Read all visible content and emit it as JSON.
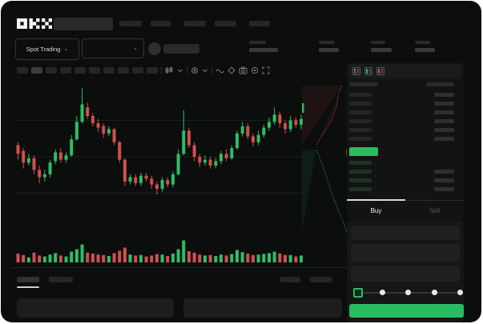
{
  "brand": {
    "name": "OKX"
  },
  "header": {
    "market_selector_label": "Spot Trading"
  },
  "toolbar": {
    "interval_count": 10,
    "icons": [
      "indicator-icon",
      "chevron-down-icon",
      "compare-icon",
      "chevron-down-icon",
      "line-tool-icon",
      "eraser-icon",
      "camera-icon",
      "settings-icon",
      "fullscreen-icon"
    ]
  },
  "colors": {
    "up_green": "#2ebd68",
    "down_red": "#d0504c",
    "accent_green": "#2abb61",
    "panel_bg": "#121313",
    "window_bg": "#0c0d0d"
  },
  "chart_data": {
    "type": "candlestick_with_volume",
    "title": "",
    "price_scale": [
      0,
      100
    ],
    "gridlines": [
      25,
      50,
      75
    ],
    "candles": [
      [
        58,
        60,
        48,
        52
      ],
      [
        54,
        56,
        42,
        46
      ],
      [
        46,
        52,
        44,
        49
      ],
      [
        49,
        51,
        38,
        41
      ],
      [
        41,
        44,
        32,
        36
      ],
      [
        36,
        41,
        33,
        38
      ],
      [
        38,
        48,
        36,
        46
      ],
      [
        47,
        55,
        45,
        53
      ],
      [
        53,
        56,
        46,
        48
      ],
      [
        48,
        53,
        46,
        51
      ],
      [
        51,
        65,
        50,
        62
      ],
      [
        62,
        78,
        61,
        74
      ],
      [
        74,
        97,
        73,
        86
      ],
      [
        84,
        87,
        76,
        78
      ],
      [
        78,
        80,
        71,
        73
      ],
      [
        73,
        76,
        67,
        70
      ],
      [
        71,
        73,
        63,
        66
      ],
      [
        66,
        71,
        64,
        69
      ],
      [
        69,
        70,
        58,
        60
      ],
      [
        60,
        61,
        46,
        48
      ],
      [
        48,
        49,
        30,
        33
      ],
      [
        33,
        38,
        31,
        36
      ],
      [
        36,
        38,
        30,
        32
      ],
      [
        32,
        39,
        30,
        37
      ],
      [
        37,
        39,
        33,
        35
      ],
      [
        35,
        37,
        28,
        31
      ],
      [
        31,
        33,
        24,
        28
      ],
      [
        28,
        36,
        26,
        34
      ],
      [
        34,
        36,
        29,
        31
      ],
      [
        31,
        40,
        29,
        38
      ],
      [
        38,
        55,
        37,
        52
      ],
      [
        52,
        82,
        51,
        68
      ],
      [
        68,
        70,
        56,
        58
      ],
      [
        58,
        60,
        47,
        50
      ],
      [
        50,
        52,
        43,
        46
      ],
      [
        46,
        51,
        44,
        48
      ],
      [
        48,
        50,
        42,
        44
      ],
      [
        44,
        49,
        42,
        47
      ],
      [
        47,
        54,
        45,
        52
      ],
      [
        52,
        55,
        47,
        49
      ],
      [
        49,
        58,
        48,
        56
      ],
      [
        56,
        68,
        55,
        66
      ],
      [
        66,
        74,
        64,
        71
      ],
      [
        71,
        73,
        62,
        64
      ],
      [
        64,
        66,
        57,
        60
      ],
      [
        60,
        68,
        58,
        65
      ],
      [
        65,
        72,
        63,
        70
      ],
      [
        70,
        77,
        68,
        74
      ],
      [
        74,
        84,
        72,
        79
      ],
      [
        79,
        81,
        70,
        73
      ],
      [
        73,
        75,
        66,
        69
      ],
      [
        69,
        78,
        67,
        75
      ],
      [
        75,
        77,
        70,
        72
      ],
      [
        72,
        79,
        69,
        76
      ]
    ],
    "volumes": [
      30,
      24,
      14,
      34,
      22,
      18,
      26,
      32,
      22,
      18,
      38,
      48,
      68,
      34,
      30,
      26,
      24,
      20,
      32,
      42,
      55,
      26,
      22,
      24,
      18,
      22,
      28,
      26,
      20,
      30,
      48,
      85,
      40,
      34,
      26,
      22,
      24,
      20,
      26,
      22,
      28,
      45,
      36,
      30,
      24,
      26,
      29,
      32,
      38,
      31,
      24,
      24,
      18,
      22
    ]
  },
  "depth": {
    "asks": [
      [
        50,
        10
      ],
      [
        47,
        16
      ],
      [
        45,
        24
      ],
      [
        44,
        32
      ],
      [
        42,
        40
      ],
      [
        39,
        48
      ],
      [
        36,
        56
      ],
      [
        32,
        62
      ],
      [
        28,
        68
      ],
      [
        24,
        74
      ],
      [
        21,
        79
      ],
      [
        18,
        84
      ]
    ],
    "bids": [
      [
        18,
        90
      ],
      [
        21,
        97
      ],
      [
        24,
        105
      ],
      [
        27,
        113
      ],
      [
        30,
        122
      ],
      [
        33,
        131
      ],
      [
        36,
        141
      ],
      [
        39,
        150
      ],
      [
        43,
        160
      ],
      [
        47,
        170
      ],
      [
        51,
        179
      ],
      [
        54,
        187
      ],
      [
        56,
        194
      ]
    ],
    "ask_stroke": "rgba(214,92,92,0.55)",
    "ask_fill": "rgba(150,50,50,0.14)",
    "bid_stroke": "rgba(66,189,150,0.5)",
    "bid_fill": "rgba(40,140,110,0.12)",
    "marker_color": "#2abb61"
  },
  "orderbook": {
    "asks": [
      {
        "l": 28,
        "r": 25
      },
      {
        "l": 28,
        "r": 25
      },
      {
        "l": 28,
        "r": 25
      },
      {
        "l": 28,
        "r": 25
      },
      {
        "l": 28,
        "r": 25
      },
      {
        "l": 28,
        "r": 25
      }
    ],
    "bids": [
      {
        "l": 28,
        "r": 0
      },
      {
        "l": 28,
        "r": 25
      },
      {
        "l": 28,
        "r": 25
      },
      {
        "l": 28,
        "r": 25
      }
    ],
    "ask_bar_color": "#242525",
    "bid_bar_color": "#20ttt",
    "view_modes": [
      "orderbook-combined",
      "orderbook-bids-only",
      "orderbook-asks-only"
    ]
  },
  "order_form": {
    "buy_tab": "Buy",
    "sell_tab": "Sell",
    "slider_stops": 5,
    "slider_value_index": 0
  }
}
